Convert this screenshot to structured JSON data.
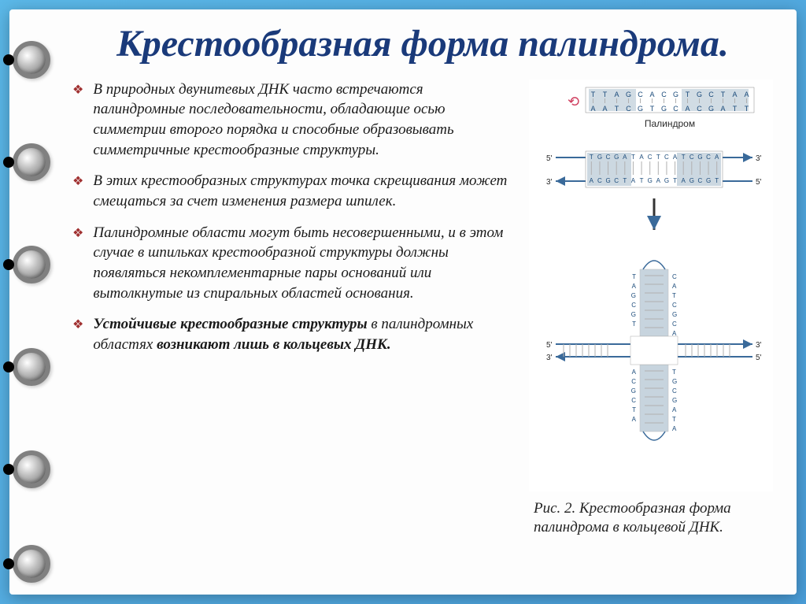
{
  "title": "Крестообразная форма палиндрома.",
  "bullets": [
    "В природных двунитевых ДНК часто встречаются палиндромные последовательности, обладающие осью симметрии второго порядка и способные образовывать симметричные крестообразные структуры.",
    "В этих крестообразных структурах точка скрещивания может смещаться за счет изменения размера шпилек.",
    "Палиндромные области могут быть <em>несовершенными</em>, и в этом случае в шпильках крестообразной структуры должны появляться некомплементарные пары оснований или вытолкнутые из спиральных областей основания.",
    "<strong>Устойчивые крестообразные структуры</strong> в палиндромных областях <strong>возникают лишь в кольцевых ДНК.</strong>"
  ],
  "caption": "Рис. 2. Крестообразная форма палиндрома в кольцевой ДНК.",
  "diagram": {
    "palindrome_top": "TTAGCACGTGCTAA",
    "palindrome_bot": "AATCGTGCACGATT",
    "palindrome_label": "Палиндром",
    "linear_top": "TGCGATACTCATCGCA",
    "linear_bot": "ACGCTATGAGTAGCGT",
    "linear_left_top": "5'",
    "linear_left_bot": "3'",
    "linear_right_top": "3'",
    "linear_right_bot": "5'",
    "vert_left": "TAGCGT",
    "vert_right": "CATCGCA",
    "vert_left2": "ACGCTA",
    "vert_right2": "TGCGATA",
    "colors": {
      "block": "#9ab2c4",
      "seq_text": "#1a4a7a",
      "tick": "#b0b0b0",
      "arrow": "#3a6a9a",
      "label": "#2a2a2a"
    },
    "font_size_seq": 9,
    "font_size_label": 12,
    "font_size_end": 10
  }
}
